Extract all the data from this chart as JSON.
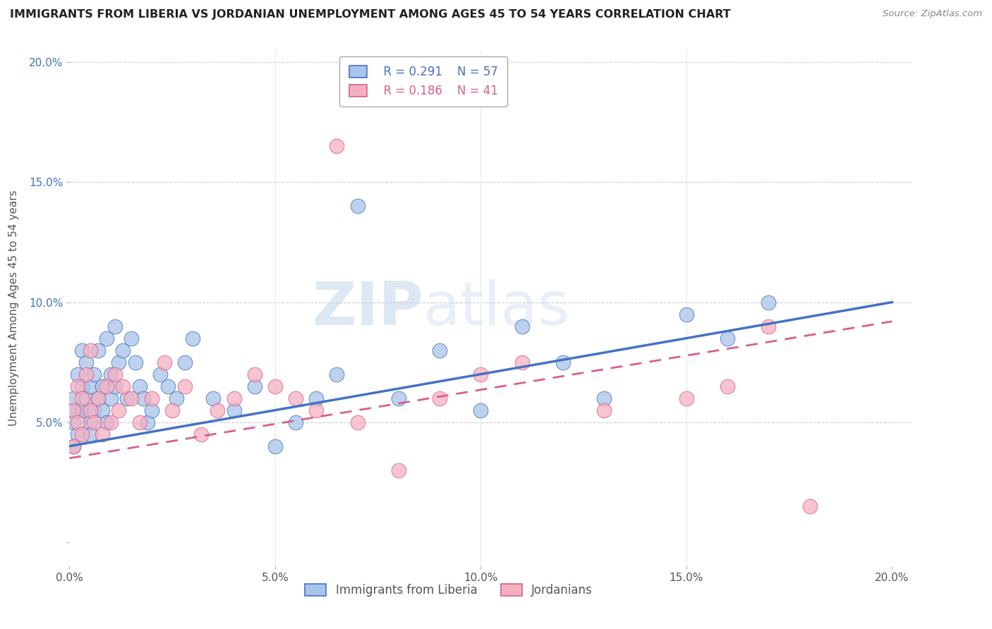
{
  "title": "IMMIGRANTS FROM LIBERIA VS JORDANIAN UNEMPLOYMENT AMONG AGES 45 TO 54 YEARS CORRELATION CHART",
  "source": "Source: ZipAtlas.com",
  "ylabel": "Unemployment Among Ages 45 to 54 years",
  "xlim": [
    0.0,
    0.205
  ],
  "ylim": [
    -0.01,
    0.205
  ],
  "xticks": [
    0.0,
    0.05,
    0.1,
    0.15,
    0.2
  ],
  "yticks": [
    0.0,
    0.05,
    0.1,
    0.15,
    0.2
  ],
  "xticklabels": [
    "0.0%",
    "5.0%",
    "10.0%",
    "15.0%",
    "20.0%"
  ],
  "yticklabels": [
    "",
    "5.0%",
    "10.0%",
    "15.0%",
    "20.0%"
  ],
  "series1_label": "Immigrants from Liberia",
  "series2_label": "Jordanians",
  "series1_R": "R = 0.291",
  "series1_N": "N = 57",
  "series2_R": "R = 0.186",
  "series2_N": "N = 41",
  "series1_color": "#a8c4e8",
  "series2_color": "#f5b0c0",
  "line1_color": "#4472c4",
  "line2_color": "#d95f8a",
  "watermark_zip": "ZIP",
  "watermark_atlas": "atlas",
  "line1_x0": 0.0,
  "line1_y0": 0.04,
  "line1_x1": 0.2,
  "line1_y1": 0.1,
  "line2_x0": 0.0,
  "line2_y0": 0.035,
  "line2_x1": 0.2,
  "line2_y1": 0.092,
  "s1_x": [
    0.001,
    0.001,
    0.001,
    0.002,
    0.002,
    0.002,
    0.003,
    0.003,
    0.003,
    0.004,
    0.004,
    0.005,
    0.005,
    0.005,
    0.006,
    0.006,
    0.007,
    0.007,
    0.008,
    0.008,
    0.009,
    0.009,
    0.01,
    0.01,
    0.011,
    0.011,
    0.012,
    0.013,
    0.014,
    0.015,
    0.016,
    0.017,
    0.018,
    0.019,
    0.02,
    0.022,
    0.024,
    0.026,
    0.028,
    0.03,
    0.035,
    0.04,
    0.045,
    0.05,
    0.055,
    0.06,
    0.065,
    0.07,
    0.08,
    0.09,
    0.1,
    0.11,
    0.12,
    0.13,
    0.15,
    0.16,
    0.17
  ],
  "s1_y": [
    0.05,
    0.04,
    0.06,
    0.07,
    0.055,
    0.045,
    0.065,
    0.055,
    0.08,
    0.06,
    0.075,
    0.05,
    0.065,
    0.045,
    0.07,
    0.055,
    0.06,
    0.08,
    0.065,
    0.055,
    0.085,
    0.05,
    0.07,
    0.06,
    0.09,
    0.065,
    0.075,
    0.08,
    0.06,
    0.085,
    0.075,
    0.065,
    0.06,
    0.05,
    0.055,
    0.07,
    0.065,
    0.06,
    0.075,
    0.085,
    0.06,
    0.055,
    0.065,
    0.04,
    0.05,
    0.06,
    0.07,
    0.14,
    0.06,
    0.08,
    0.055,
    0.09,
    0.075,
    0.06,
    0.095,
    0.085,
    0.1
  ],
  "s2_x": [
    0.001,
    0.001,
    0.002,
    0.002,
    0.003,
    0.003,
    0.004,
    0.005,
    0.005,
    0.006,
    0.007,
    0.008,
    0.009,
    0.01,
    0.011,
    0.012,
    0.013,
    0.015,
    0.017,
    0.02,
    0.023,
    0.025,
    0.028,
    0.032,
    0.036,
    0.04,
    0.045,
    0.05,
    0.055,
    0.06,
    0.065,
    0.07,
    0.08,
    0.09,
    0.1,
    0.11,
    0.13,
    0.15,
    0.16,
    0.17,
    0.18
  ],
  "s2_y": [
    0.055,
    0.04,
    0.065,
    0.05,
    0.045,
    0.06,
    0.07,
    0.055,
    0.08,
    0.05,
    0.06,
    0.045,
    0.065,
    0.05,
    0.07,
    0.055,
    0.065,
    0.06,
    0.05,
    0.06,
    0.075,
    0.055,
    0.065,
    0.045,
    0.055,
    0.06,
    0.07,
    0.065,
    0.06,
    0.055,
    0.165,
    0.05,
    0.03,
    0.06,
    0.07,
    0.075,
    0.055,
    0.06,
    0.065,
    0.09,
    0.015
  ]
}
